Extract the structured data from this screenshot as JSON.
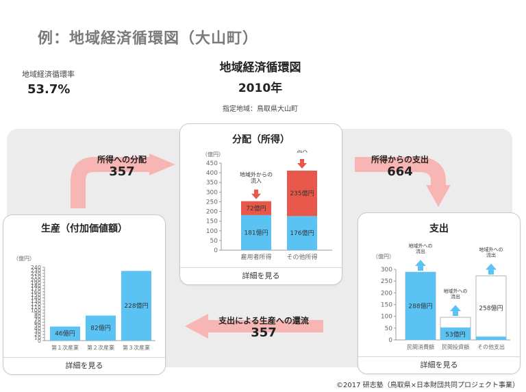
{
  "header": {
    "slide_title": "例：地域経済循環図（大山町）",
    "rate_label": "地域経済循環率",
    "rate_value": "53.7%",
    "diagram_title": "地域経済循環図",
    "year": "2010年",
    "region": "指定地域：鳥取県大山町"
  },
  "flows": {
    "to_income": {
      "label": "所得への分配",
      "value": "357"
    },
    "from_income": {
      "label": "所得からの支出",
      "value": "664"
    },
    "return": {
      "label": "支出による生産への還流",
      "value": "357"
    }
  },
  "colors": {
    "blue": "#5bc2f4",
    "red": "#e8584a",
    "arrow_pink": "#f7b6b4",
    "background": "#ececec"
  },
  "panels": {
    "production": {
      "title": "生産（付加価値額）",
      "footer": "詳細を見る"
    },
    "distribution": {
      "title": "分配（所得）",
      "footer": "詳細を見る"
    },
    "expenditure": {
      "title": "支出",
      "footer": "詳細を見る"
    }
  },
  "chart_data": [
    {
      "type": "bar",
      "title": "生産（付加価値額）",
      "ylabel": "（億円）",
      "ylim": [
        0,
        240
      ],
      "yticks": [
        0,
        10,
        20,
        30,
        40,
        50,
        60,
        70,
        80,
        90,
        100,
        110,
        120,
        130,
        140,
        150,
        160,
        170,
        180,
        190,
        200,
        210,
        220,
        230,
        240
      ],
      "categories": [
        "第１次産業",
        "第２次産業",
        "第３次産業"
      ],
      "values": [
        46,
        82,
        228
      ],
      "value_labels": [
        "46億円",
        "82億円",
        "228億円"
      ]
    },
    {
      "type": "bar",
      "stacked": true,
      "title": "分配（所得）",
      "ylabel": "（億円）",
      "ylim": [
        0,
        450
      ],
      "yticks": [
        0,
        50,
        100,
        150,
        200,
        250,
        300,
        350,
        400,
        450
      ],
      "categories": [
        "雇用者所得",
        "その他所得"
      ],
      "series": [
        {
          "values": [
            181,
            176
          ],
          "labels": [
            "181億円",
            "176億円"
          ]
        },
        {
          "values": [
            72,
            235
          ],
          "labels": [
            "72億円",
            "235億円"
          ]
        }
      ],
      "annotations": [
        "地域外からの流入",
        "地域外からの流入"
      ]
    },
    {
      "type": "bar",
      "title": "支出",
      "ylabel": "（億円）",
      "ylim": [
        0,
        300
      ],
      "yticks": [
        0,
        50,
        100,
        150,
        200,
        250,
        300
      ],
      "categories": [
        "民間消費額",
        "民間投資額",
        "その他支出"
      ],
      "bars": [
        {
          "inside": 288,
          "outline": 288,
          "label": "288億円"
        },
        {
          "inside": 53,
          "outline": 96,
          "label": "53億円"
        },
        {
          "inside": 14,
          "outline": 272,
          "label": "258億円"
        }
      ],
      "annotations": [
        "地域外への流出",
        "地域外への流出",
        "地域外への流出"
      ]
    }
  ],
  "copyright": "©2017 研志塾（鳥取県×日本財団共同プロジェクト事業）"
}
